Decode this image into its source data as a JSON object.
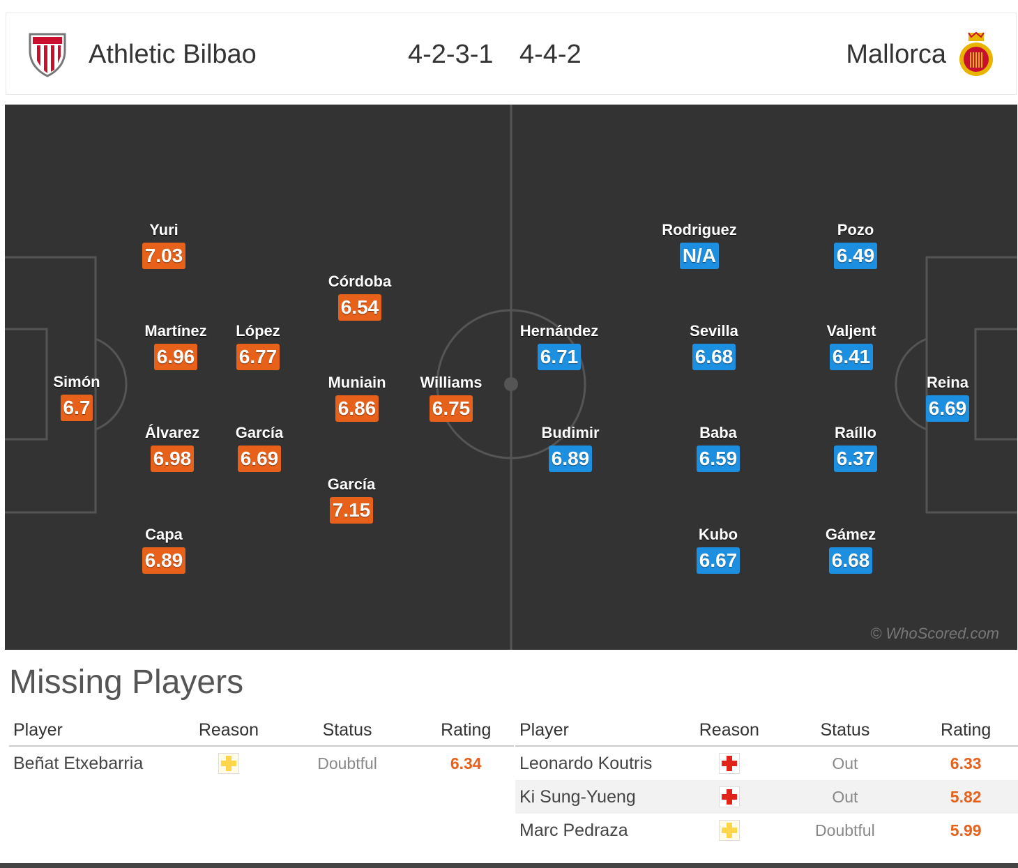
{
  "header": {
    "home_team": "Athletic Bilbao",
    "home_formation": "4-2-3-1",
    "away_formation": "4-4-2",
    "away_team": "Mallorca"
  },
  "pitch": {
    "watermark": "© WhoScored.com",
    "home_players": [
      {
        "name": "Simón",
        "rating": "6.7"
      },
      {
        "name": "Yuri",
        "rating": "7.03"
      },
      {
        "name": "Martínez",
        "rating": "6.96"
      },
      {
        "name": "Álvarez",
        "rating": "6.98"
      },
      {
        "name": "Capa",
        "rating": "6.89"
      },
      {
        "name": "López",
        "rating": "6.77"
      },
      {
        "name": "García",
        "rating": "6.69"
      },
      {
        "name": "Córdoba",
        "rating": "6.54"
      },
      {
        "name": "Muniain",
        "rating": "6.86"
      },
      {
        "name": "García",
        "rating": "7.15"
      },
      {
        "name": "Williams",
        "rating": "6.75"
      }
    ],
    "away_players": [
      {
        "name": "Hernández",
        "rating": "6.71"
      },
      {
        "name": "Budimir",
        "rating": "6.89"
      },
      {
        "name": "Rodriguez",
        "rating": "N/A"
      },
      {
        "name": "Sevilla",
        "rating": "6.68"
      },
      {
        "name": "Baba",
        "rating": "6.59"
      },
      {
        "name": "Kubo",
        "rating": "6.67"
      },
      {
        "name": "Pozo",
        "rating": "6.49"
      },
      {
        "name": "Valjent",
        "rating": "6.41"
      },
      {
        "name": "Raíllo",
        "rating": "6.37"
      },
      {
        "name": "Gámez",
        "rating": "6.68"
      },
      {
        "name": "Reina",
        "rating": "6.69"
      }
    ]
  },
  "missing": {
    "title": "Missing Players",
    "columns": [
      "Player",
      "Reason",
      "Status",
      "Rating"
    ],
    "home": [
      {
        "player": "Beñat Etxebarria",
        "reason": "yellow-cross-icon",
        "status": "Doubtful",
        "rating": "6.34"
      }
    ],
    "away": [
      {
        "player": "Leonardo Koutris",
        "reason": "red-cross-icon",
        "status": "Out",
        "rating": "6.33"
      },
      {
        "player": "Ki Sung-Yueng",
        "reason": "red-cross-icon",
        "status": "Out",
        "rating": "5.82"
      },
      {
        "player": "Marc Pedraza",
        "reason": "yellow-cross-icon",
        "status": "Doubtful",
        "rating": "5.99"
      }
    ]
  },
  "colors": {
    "pitch": "#333333",
    "home_rating": "#e8611a",
    "away_rating": "#1d8fe0",
    "injury_red": "#e2231a",
    "doubtful_yellow": "#ffd54a"
  }
}
